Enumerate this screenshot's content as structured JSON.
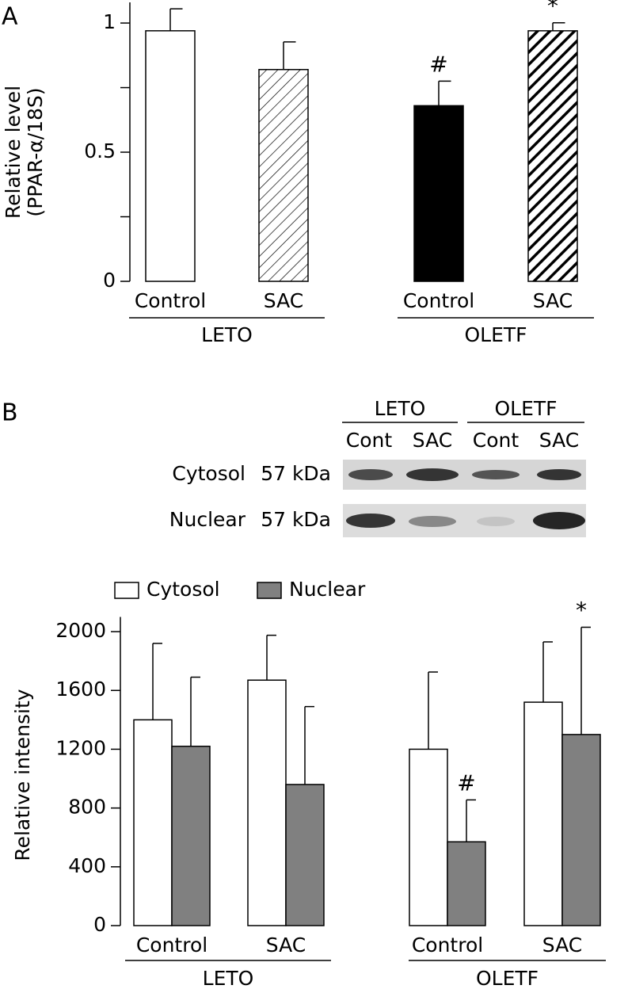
{
  "panels": [
    "A",
    "B"
  ],
  "blot": {
    "groups": [
      "LETO",
      "OLETF"
    ],
    "lanes": [
      "Cont",
      "SAC",
      "Cont",
      "SAC"
    ],
    "rows": [
      {
        "name": "Cytosol",
        "size": "57 kDa"
      },
      {
        "name": "Nuclear",
        "size": "57 kDa"
      }
    ]
  },
  "chart_data": [
    {
      "type": "bar",
      "ylabel": [
        "Relative level",
        "(PPAR-α/18S)"
      ],
      "categories": [
        "Control",
        "SAC",
        "Control",
        "SAC"
      ],
      "groups": [
        "LETO",
        "OLETF"
      ],
      "values": [
        0.97,
        0.82,
        0.68,
        0.97
      ],
      "errors": [
        0.085,
        0.107,
        0.095,
        0.031
      ],
      "fills": [
        "#ffffff",
        "hatch-thin",
        "#000000",
        "hatch-thick"
      ],
      "markers": [
        null,
        null,
        "#",
        "*"
      ],
      "ylim": [
        0,
        1.08
      ],
      "yticks": [
        0,
        0.5,
        1
      ],
      "yminorticks": [
        0.25,
        0.75
      ]
    },
    {
      "type": "grouped_bar",
      "ylabel": [
        "Relative intensity"
      ],
      "categories": [
        "Control",
        "SAC",
        "Control",
        "SAC"
      ],
      "groups": [
        "LETO",
        "OLETF"
      ],
      "series": [
        {
          "name": "Cytosol",
          "color": "#ffffff",
          "values": [
            1400,
            1670,
            1200,
            1520
          ],
          "errors": [
            520,
            305,
            525,
            410
          ],
          "markers": [
            null,
            null,
            null,
            null
          ]
        },
        {
          "name": "Nuclear",
          "color": "#808080",
          "values": [
            1220,
            960,
            570,
            1300
          ],
          "errors": [
            470,
            530,
            285,
            730
          ],
          "markers": [
            null,
            null,
            "#",
            "*"
          ]
        }
      ],
      "legend": "top-left",
      "ylim": [
        0,
        2100
      ],
      "yticks": [
        0,
        400,
        800,
        1200,
        1600,
        2000
      ]
    }
  ]
}
